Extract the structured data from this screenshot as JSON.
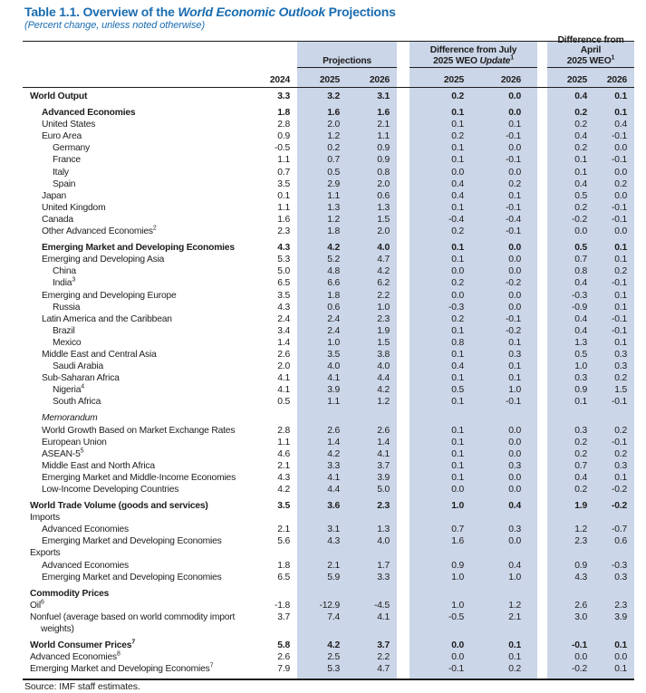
{
  "colors": {
    "accent_blue": "#1a6cb0",
    "column_shade": "#ccd6e9",
    "rule": "#1d1d1b",
    "text": "#1d1d1b"
  },
  "title": {
    "prefix": "Table 1.1. Overview of the ",
    "italic": "World Economic Outlook",
    "suffix": " Projections"
  },
  "subtitle": "(Percent change, unless noted otherwise)",
  "source": "Source: IMF staff estimates.",
  "table": {
    "col_groups": {
      "projections": {
        "label": "Projections"
      },
      "diff_july": {
        "line1": "Difference from July",
        "line2_pre": "2025 WEO ",
        "line2_italic": "Update",
        "sup": "1"
      },
      "diff_april": {
        "line1": "Difference from April",
        "line2_pre": "2025 WEO",
        "sup": "1"
      }
    },
    "year_headers": {
      "y2024": "2024",
      "proj_2025": "2025",
      "proj_2026": "2026",
      "jul_2025": "2025",
      "jul_2026": "2026",
      "apr_2025": "2025",
      "apr_2026": "2026"
    },
    "rows": [
      {
        "label": "World Output",
        "level": 0,
        "bold": true,
        "values": [
          "3.3",
          "3.2",
          "3.1",
          "0.2",
          "0.0",
          "0.4",
          "0.1"
        ]
      },
      {
        "label": "Advanced Economies",
        "level": 1,
        "bold": true,
        "gap_before": true,
        "values": [
          "1.8",
          "1.6",
          "1.6",
          "0.1",
          "0.0",
          "0.2",
          "0.1"
        ]
      },
      {
        "label": "United States",
        "level": 1,
        "values": [
          "2.8",
          "2.0",
          "2.1",
          "0.1",
          "0.1",
          "0.2",
          "0.4"
        ]
      },
      {
        "label": "Euro Area",
        "level": 1,
        "values": [
          "0.9",
          "1.2",
          "1.1",
          "0.2",
          "-0.1",
          "0.4",
          "-0.1"
        ]
      },
      {
        "label": "Germany",
        "level": 2,
        "values": [
          "-0.5",
          "0.2",
          "0.9",
          "0.1",
          "0.0",
          "0.2",
          "0.0"
        ]
      },
      {
        "label": "France",
        "level": 2,
        "values": [
          "1.1",
          "0.7",
          "0.9",
          "0.1",
          "-0.1",
          "0.1",
          "-0.1"
        ]
      },
      {
        "label": "Italy",
        "level": 2,
        "values": [
          "0.7",
          "0.5",
          "0.8",
          "0.0",
          "0.0",
          "0.1",
          "0.0"
        ]
      },
      {
        "label": "Spain",
        "level": 2,
        "values": [
          "3.5",
          "2.9",
          "2.0",
          "0.4",
          "0.2",
          "0.4",
          "0.2"
        ]
      },
      {
        "label": "Japan",
        "level": 1,
        "values": [
          "0.1",
          "1.1",
          "0.6",
          "0.4",
          "0.1",
          "0.5",
          "0.0"
        ]
      },
      {
        "label": "United Kingdom",
        "level": 1,
        "values": [
          "1.1",
          "1.3",
          "1.3",
          "0.1",
          "-0.1",
          "0.2",
          "-0.1"
        ]
      },
      {
        "label": "Canada",
        "level": 1,
        "values": [
          "1.6",
          "1.2",
          "1.5",
          "-0.4",
          "-0.4",
          "-0.2",
          "-0.1"
        ]
      },
      {
        "label": "Other Advanced Economies",
        "sup": "2",
        "level": 1,
        "values": [
          "2.3",
          "1.8",
          "2.0",
          "0.2",
          "-0.1",
          "0.0",
          "0.0"
        ]
      },
      {
        "label": "Emerging Market and Developing Economies",
        "level": 1,
        "bold": true,
        "gap_before": true,
        "values": [
          "4.3",
          "4.2",
          "4.0",
          "0.1",
          "0.0",
          "0.5",
          "0.1"
        ]
      },
      {
        "label": "Emerging and Developing Asia",
        "level": 1,
        "values": [
          "5.3",
          "5.2",
          "4.7",
          "0.1",
          "0.0",
          "0.7",
          "0.1"
        ]
      },
      {
        "label": "China",
        "level": 2,
        "values": [
          "5.0",
          "4.8",
          "4.2",
          "0.0",
          "0.0",
          "0.8",
          "0.2"
        ]
      },
      {
        "label": "India",
        "sup": "3",
        "level": 2,
        "values": [
          "6.5",
          "6.6",
          "6.2",
          "0.2",
          "-0.2",
          "0.4",
          "-0.1"
        ]
      },
      {
        "label": "Emerging and Developing Europe",
        "level": 1,
        "values": [
          "3.5",
          "1.8",
          "2.2",
          "0.0",
          "0.0",
          "-0.3",
          "0.1"
        ]
      },
      {
        "label": "Russia",
        "level": 2,
        "values": [
          "4.3",
          "0.6",
          "1.0",
          "-0.3",
          "0.0",
          "-0.9",
          "0.1"
        ]
      },
      {
        "label": "Latin America and the Caribbean",
        "level": 1,
        "values": [
          "2.4",
          "2.4",
          "2.3",
          "0.2",
          "-0.1",
          "0.4",
          "-0.1"
        ]
      },
      {
        "label": "Brazil",
        "level": 2,
        "values": [
          "3.4",
          "2.4",
          "1.9",
          "0.1",
          "-0.2",
          "0.4",
          "-0.1"
        ]
      },
      {
        "label": "Mexico",
        "level": 2,
        "values": [
          "1.4",
          "1.0",
          "1.5",
          "0.8",
          "0.1",
          "1.3",
          "0.1"
        ]
      },
      {
        "label": "Middle East and Central Asia",
        "level": 1,
        "values": [
          "2.6",
          "3.5",
          "3.8",
          "0.1",
          "0.3",
          "0.5",
          "0.3"
        ]
      },
      {
        "label": "Saudi Arabia",
        "level": 2,
        "values": [
          "2.0",
          "4.0",
          "4.0",
          "0.4",
          "0.1",
          "1.0",
          "0.3"
        ]
      },
      {
        "label": "Sub-Saharan Africa",
        "level": 1,
        "values": [
          "4.1",
          "4.1",
          "4.4",
          "0.1",
          "0.1",
          "0.3",
          "0.2"
        ]
      },
      {
        "label": "Nigeria",
        "sup": "4",
        "level": 2,
        "values": [
          "4.1",
          "3.9",
          "4.2",
          "0.5",
          "1.0",
          "0.9",
          "1.5"
        ]
      },
      {
        "label": "South Africa",
        "level": 2,
        "values": [
          "0.5",
          "1.1",
          "1.2",
          "0.1",
          "-0.1",
          "0.1",
          "-0.1"
        ]
      },
      {
        "label": "Memorandum",
        "level": 1,
        "italic": true,
        "gap_before": true,
        "values": []
      },
      {
        "label": "World Growth Based on Market Exchange Rates",
        "level": 1,
        "values": [
          "2.8",
          "2.6",
          "2.6",
          "0.1",
          "0.0",
          "0.3",
          "0.2"
        ]
      },
      {
        "label": "European Union",
        "level": 1,
        "values": [
          "1.1",
          "1.4",
          "1.4",
          "0.1",
          "0.0",
          "0.2",
          "-0.1"
        ]
      },
      {
        "label": "ASEAN-5",
        "sup": "5",
        "level": 1,
        "values": [
          "4.6",
          "4.2",
          "4.1",
          "0.1",
          "0.0",
          "0.2",
          "0.2"
        ]
      },
      {
        "label": "Middle East and North Africa",
        "level": 1,
        "values": [
          "2.1",
          "3.3",
          "3.7",
          "0.1",
          "0.3",
          "0.7",
          "0.3"
        ]
      },
      {
        "label": "Emerging Market and Middle-Income Economies",
        "level": 1,
        "values": [
          "4.3",
          "4.1",
          "3.9",
          "0.1",
          "0.0",
          "0.4",
          "0.1"
        ]
      },
      {
        "label": "Low-Income Developing Countries",
        "level": 1,
        "values": [
          "4.2",
          "4.4",
          "5.0",
          "0.0",
          "0.0",
          "0.2",
          "-0.2"
        ]
      },
      {
        "label": "World Trade Volume (goods and services)",
        "level": 0,
        "bold": true,
        "gap_before": true,
        "values": [
          "3.5",
          "3.6",
          "2.3",
          "1.0",
          "0.4",
          "1.9",
          "-0.2"
        ]
      },
      {
        "label": "Imports",
        "level": 0,
        "values": []
      },
      {
        "label": "Advanced Economies",
        "level": 1,
        "values": [
          "2.1",
          "3.1",
          "1.3",
          "0.7",
          "0.3",
          "1.2",
          "-0.7"
        ]
      },
      {
        "label": "Emerging Market and Developing Economies",
        "level": 1,
        "values": [
          "5.6",
          "4.3",
          "4.0",
          "1.6",
          "0.0",
          "2.3",
          "0.6"
        ]
      },
      {
        "label": "Exports",
        "level": 0,
        "values": []
      },
      {
        "label": "Advanced Economies",
        "level": 1,
        "values": [
          "1.8",
          "2.1",
          "1.7",
          "0.9",
          "0.4",
          "0.9",
          "-0.3"
        ]
      },
      {
        "label": "Emerging Market and Developing Economies",
        "level": 1,
        "values": [
          "6.5",
          "5.9",
          "3.3",
          "1.0",
          "1.0",
          "4.3",
          "0.3"
        ]
      },
      {
        "label": "Commodity Prices",
        "level": 0,
        "bold": true,
        "gap_before": true,
        "values": []
      },
      {
        "label": "Oil",
        "sup": "6",
        "level": 0,
        "values": [
          "-1.8",
          "-12.9",
          "-4.5",
          "1.0",
          "1.2",
          "2.6",
          "2.3"
        ]
      },
      {
        "label": "Nonfuel (average based on world commodity import",
        "label2": "weights)",
        "level": 0,
        "values": [
          "3.7",
          "7.4",
          "4.1",
          "-0.5",
          "2.1",
          "3.0",
          "3.9"
        ]
      },
      {
        "label": "World Consumer Prices",
        "sup": "7",
        "level": 0,
        "bold": true,
        "gap_before": true,
        "values": [
          "5.8",
          "4.2",
          "3.7",
          "0.0",
          "0.1",
          "-0.1",
          "0.1"
        ]
      },
      {
        "label": "Advanced Economies",
        "sup": "8",
        "level": 0,
        "values": [
          "2.6",
          "2.5",
          "2.2",
          "0.0",
          "0.1",
          "0.0",
          "0.0"
        ]
      },
      {
        "label": "Emerging Market and Developing Economies",
        "sup": "7",
        "level": 0,
        "values": [
          "7.9",
          "5.3",
          "4.7",
          "-0.1",
          "0.2",
          "-0.2",
          "0.1"
        ]
      }
    ]
  }
}
